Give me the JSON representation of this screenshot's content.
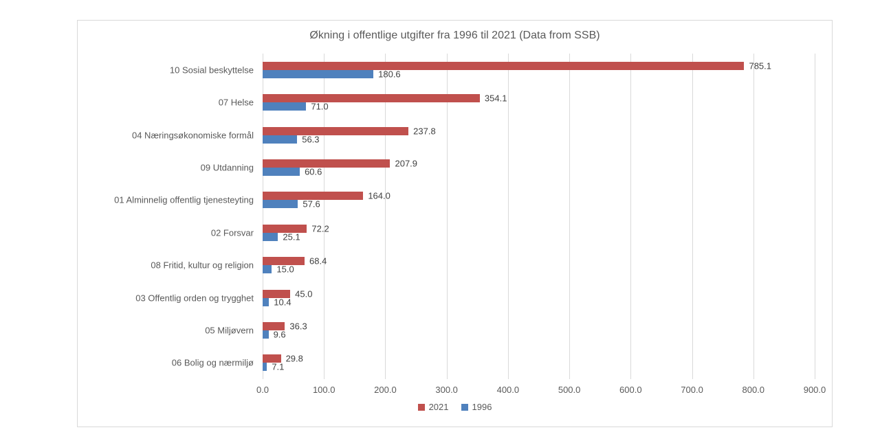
{
  "chart_data": {
    "type": "bar",
    "orientation": "horizontal",
    "title": "Økning i offentlige utgifter fra 1996 til 2021 (Data from SSB)",
    "categories": [
      "10 Sosial beskyttelse",
      "07 Helse",
      "04 Næringsøkonomiske formål",
      "09 Utdanning",
      "01 Alminnelig offentlig tjenesteyting",
      "02 Forsvar",
      "08 Fritid, kultur og religion",
      "03 Offentlig orden og trygghet",
      "05 Miljøvern",
      "06 Bolig og nærmiljø"
    ],
    "series": [
      {
        "name": "2021",
        "color": "#c0504d",
        "values": [
          785.1,
          354.1,
          237.8,
          207.9,
          164.0,
          72.2,
          68.4,
          45.0,
          36.3,
          29.8
        ]
      },
      {
        "name": "1996",
        "color": "#4f81bd",
        "values": [
          180.6,
          71.0,
          56.3,
          60.6,
          57.6,
          25.1,
          15.0,
          10.4,
          9.6,
          7.1
        ]
      }
    ],
    "xlabel": "",
    "ylabel": "",
    "xlim": [
      0,
      900
    ],
    "x_ticks": [
      "0.0",
      "100.0",
      "200.0",
      "300.0",
      "400.0",
      "500.0",
      "600.0",
      "700.0",
      "800.0",
      "900.0"
    ],
    "grid": true,
    "legend_position": "bottom",
    "value_label_decimals": 1
  }
}
